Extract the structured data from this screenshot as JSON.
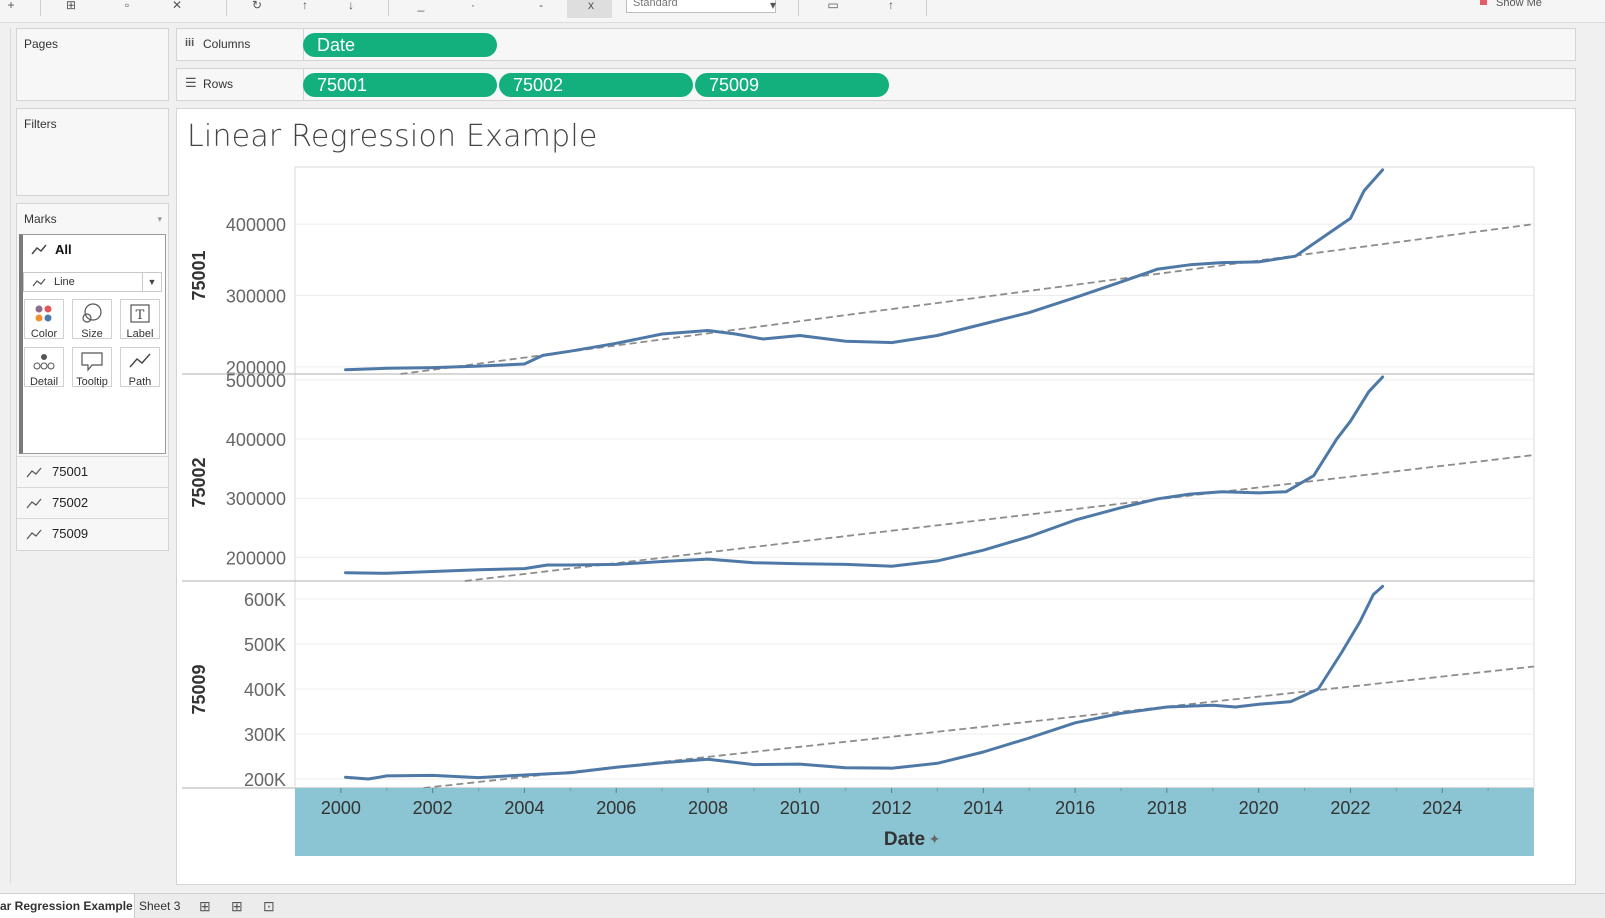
{
  "shelves": {
    "pages_label": "Pages",
    "filters_label": "Filters",
    "columns_label": "Columns",
    "rows_label": "Rows",
    "columns_pills": [
      "Date"
    ],
    "rows_pills": [
      "75001",
      "75002",
      "75009"
    ]
  },
  "marks": {
    "title": "Marks",
    "all_label": "All",
    "mark_type": "Line",
    "buttons": [
      "Color",
      "Size",
      "Label",
      "Detail",
      "Tooltip",
      "Path"
    ],
    "series": [
      "75001",
      "75002",
      "75009"
    ]
  },
  "toolbar": {
    "fit_select": "Standard",
    "show_me": "Show Me"
  },
  "view": {
    "title": "Linear Regression Example"
  },
  "tabs": {
    "active": "ar Regression Example",
    "other": "Sheet 3"
  },
  "colors": {
    "pill": "#13b07d",
    "line": "#4e79a7",
    "trend": "#8c8c8c",
    "x_axis_band": "#8bc4d2"
  },
  "chart_data": {
    "type": "line",
    "title": "Linear Regression Example",
    "xlabel": "Date",
    "x_ticks": [
      2000,
      2002,
      2004,
      2006,
      2008,
      2010,
      2012,
      2014,
      2016,
      2018,
      2020,
      2022,
      2024
    ],
    "xlim": [
      1999.0,
      2026.0
    ],
    "panels": [
      {
        "name": "75001",
        "ylim": [
          190000,
          480000
        ],
        "y_ticks": [
          200000,
          300000,
          400000
        ],
        "y_tick_labels": [
          "200000",
          "300000",
          "400000"
        ],
        "trend": [
          [
            2001.3,
            190000
          ],
          [
            2026.0,
            400000
          ]
        ],
        "x": [
          2000.1,
          2001.0,
          2002.0,
          2003.0,
          2004.0,
          2004.4,
          2005.0,
          2006.0,
          2007.0,
          2008.0,
          2008.6,
          2009.2,
          2010.0,
          2011.0,
          2012.0,
          2013.0,
          2014.0,
          2015.0,
          2016.0,
          2017.0,
          2017.8,
          2018.5,
          2019.2,
          2020.0,
          2020.8,
          2021.5,
          2022.0,
          2022.3,
          2022.7
        ],
        "values": [
          196000,
          198000,
          199000,
          201000,
          204000,
          216000,
          222000,
          233000,
          246000,
          251000,
          246000,
          239000,
          244000,
          236000,
          234000,
          244000,
          260000,
          276000,
          297000,
          319000,
          337000,
          343000,
          346000,
          347000,
          355000,
          386000,
          408000,
          447000,
          476000
        ]
      },
      {
        "name": "75002",
        "ylim": [
          160000,
          510000
        ],
        "y_ticks": [
          200000,
          300000,
          400000,
          500000
        ],
        "y_tick_labels": [
          "200000",
          "300000",
          "400000",
          "500000"
        ],
        "trend": [
          [
            2002.7,
            160000
          ],
          [
            2026.0,
            373000
          ]
        ],
        "x": [
          2000.1,
          2001.0,
          2002.0,
          2003.0,
          2004.0,
          2004.5,
          2005.0,
          2006.0,
          2007.0,
          2008.0,
          2009.0,
          2010.0,
          2011.0,
          2012.0,
          2013.0,
          2014.0,
          2015.0,
          2016.0,
          2017.0,
          2017.8,
          2018.5,
          2019.2,
          2020.0,
          2020.6,
          2021.2,
          2021.7,
          2022.0,
          2022.4,
          2022.7
        ],
        "values": [
          174000,
          173000,
          176000,
          179000,
          181000,
          187000,
          187000,
          188000,
          193000,
          197000,
          191000,
          189000,
          188000,
          185000,
          194000,
          212000,
          235000,
          263000,
          284000,
          299000,
          307000,
          311000,
          309000,
          311000,
          338000,
          400000,
          430000,
          480000,
          505000
        ]
      },
      {
        "name": "75009",
        "ylim": [
          180000,
          640000
        ],
        "y_ticks": [
          200000,
          300000,
          400000,
          500000,
          600000
        ],
        "y_tick_labels": [
          "200K",
          "300K",
          "400K",
          "500K",
          "600K"
        ],
        "trend": [
          [
            2001.8,
            180000
          ],
          [
            2026.0,
            450000
          ]
        ],
        "x": [
          2000.1,
          2000.6,
          2001.0,
          2002.0,
          2003.0,
          2004.0,
          2005.0,
          2006.0,
          2007.0,
          2008.0,
          2009.0,
          2010.0,
          2011.0,
          2012.0,
          2013.0,
          2014.0,
          2015.0,
          2016.0,
          2017.0,
          2018.0,
          2019.0,
          2019.5,
          2020.0,
          2020.7,
          2021.3,
          2021.8,
          2022.2,
          2022.5,
          2022.7
        ],
        "values": [
          204000,
          200000,
          207000,
          208000,
          203000,
          209000,
          214000,
          226000,
          236000,
          244000,
          232000,
          233000,
          225000,
          224000,
          235000,
          260000,
          291000,
          325000,
          346000,
          360000,
          364000,
          360000,
          366000,
          372000,
          400000,
          480000,
          548000,
          610000,
          628000
        ]
      }
    ]
  }
}
